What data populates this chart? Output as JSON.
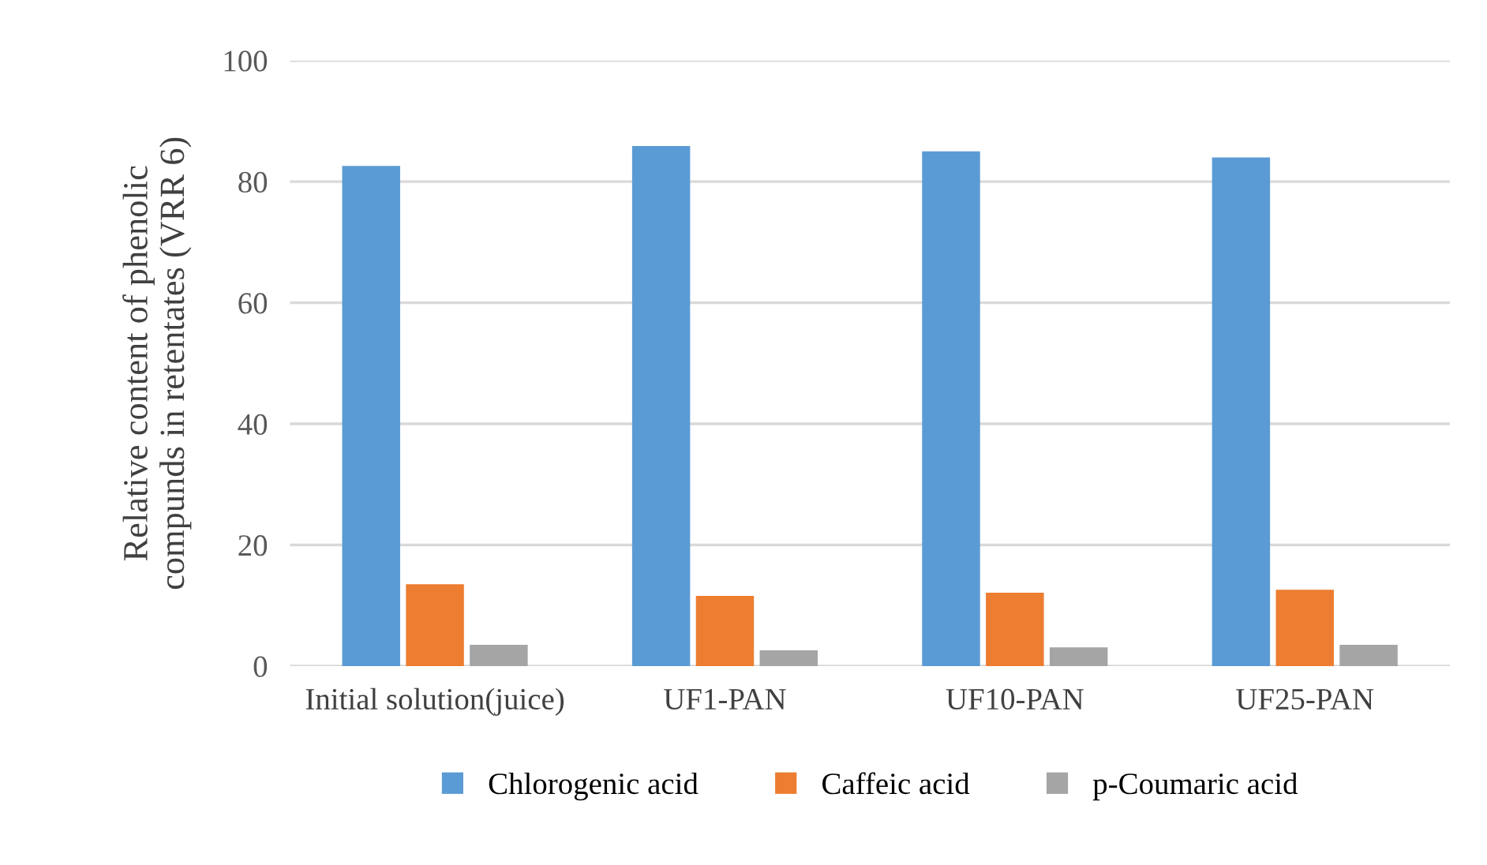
{
  "chart_data": {
    "type": "bar",
    "ylabel": "Relative content of phenolic\ncompunds in retentates (VRR 6)",
    "categories": [
      "Initial solution(juice)",
      "UF1-PAN",
      "UF10-PAN",
      "UF25-PAN"
    ],
    "series": [
      {
        "name": "Chlorogenic acid",
        "color": "#5b9bd5",
        "values": [
          82.6,
          85.9,
          85.0,
          84.0
        ]
      },
      {
        "name": "Caffeic acid",
        "color": "#ed7d31",
        "values": [
          13.5,
          11.6,
          12.1,
          12.6
        ]
      },
      {
        "name": "p-Coumaric acid",
        "color": "#a5a5a5",
        "values": [
          3.5,
          2.6,
          3.1,
          3.5
        ]
      }
    ],
    "ylim": [
      0,
      100
    ],
    "yticks": [
      0,
      20,
      40,
      60,
      80,
      100
    ],
    "grid": "y",
    "legend": "bottom"
  }
}
